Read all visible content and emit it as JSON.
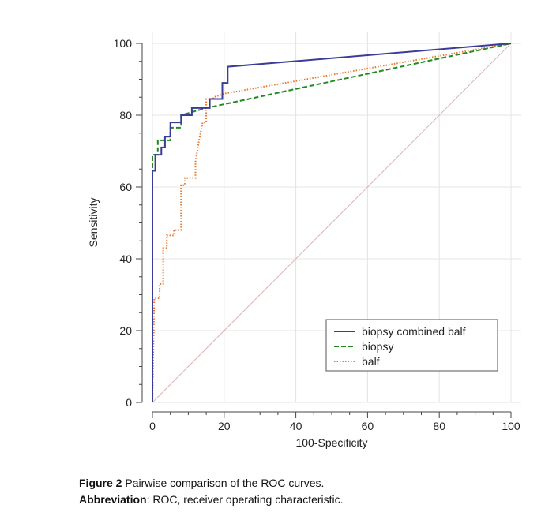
{
  "chart_data": {
    "type": "line",
    "xlabel": "100-Specificity",
    "ylabel": "Sensitivity",
    "xlim": [
      0,
      100
    ],
    "ylim": [
      0,
      100
    ],
    "xticks": [
      0,
      20,
      40,
      60,
      80,
      100
    ],
    "yticks": [
      0,
      20,
      40,
      60,
      80,
      100
    ],
    "grid": true,
    "legend_position": "bottom-right",
    "reference_line": {
      "x": [
        0,
        100
      ],
      "y": [
        0,
        100
      ],
      "color": "#d8b4b4"
    },
    "series": [
      {
        "name": "biopsy combined balf",
        "color": "#3b3b98",
        "style": "solid",
        "x": [
          0,
          0,
          0.8,
          0.8,
          2.5,
          2.5,
          3.5,
          3.5,
          5,
          5,
          8,
          8,
          11,
          11,
          16,
          16,
          19.5,
          19.5,
          21,
          21,
          100
        ],
        "y": [
          0,
          64.5,
          64.5,
          69,
          69,
          71,
          71,
          74,
          74,
          78,
          78,
          80,
          80,
          82,
          82,
          84.5,
          84.5,
          89,
          89,
          93.5,
          100
        ]
      },
      {
        "name": "biopsy",
        "color": "#1f8a1f",
        "style": "dashed",
        "x": [
          0,
          0,
          1.5,
          1.5,
          5,
          5,
          8,
          8,
          15,
          100
        ],
        "y": [
          0,
          69,
          69,
          73,
          73,
          76.5,
          76.5,
          80,
          82,
          100
        ]
      },
      {
        "name": "balf",
        "color": "#e8762b",
        "style": "dotted",
        "x": [
          0,
          0.5,
          0.5,
          2,
          2,
          3,
          3,
          4,
          4,
          6,
          6,
          8,
          8,
          9,
          9,
          12,
          12,
          13,
          14,
          15,
          15,
          17,
          17,
          20,
          100
        ],
        "y": [
          0,
          29,
          29,
          29,
          33,
          33,
          43,
          43,
          46.5,
          46.5,
          48,
          48,
          60.5,
          60.5,
          62.5,
          62.5,
          67,
          73,
          78,
          78,
          84.5,
          84.5,
          85,
          86,
          100
        ]
      }
    ]
  },
  "caption": {
    "figure_label": "Figure 2",
    "figure_text": "Pairwise comparison of the ROC curves.",
    "abbreviation_label": "Abbreviation",
    "abbreviation_text": ": ROC, receiver operating characteristic."
  }
}
